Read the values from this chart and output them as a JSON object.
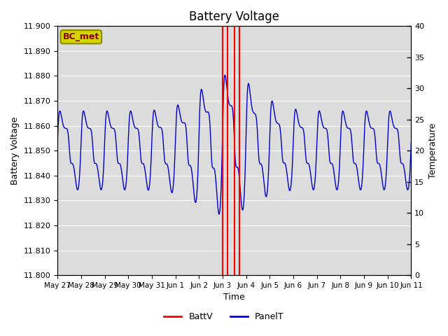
{
  "title": "Battery Voltage",
  "xlabel": "Time",
  "ylabel_left": "Battery Voltage",
  "ylabel_right": "Temperature",
  "ylim_left": [
    11.8,
    11.9
  ],
  "ylim_right": [
    0,
    40
  ],
  "yticks_left": [
    11.8,
    11.81,
    11.82,
    11.83,
    11.84,
    11.85,
    11.86,
    11.87,
    11.88,
    11.89,
    11.9
  ],
  "yticks_right": [
    0,
    5,
    10,
    15,
    20,
    25,
    30,
    35,
    40
  ],
  "x_tick_labels": [
    "May 27",
    "May 28",
    "May 29",
    "May 30",
    "May 31",
    "Jun 1",
    "Jun 2",
    "Jun 3",
    "Jun 4",
    "Jun 5",
    "Jun 6",
    "Jun 7",
    "Jun 8",
    "Jun 9",
    "Jun 10",
    "Jun 11"
  ],
  "legend_battv_color": "#FF0000",
  "legend_panelt_color": "#0000FF",
  "line_color": "#0000CC",
  "bg_color": "#DCDCDC",
  "grid_color": "#FFFFFF",
  "annotation_text": "BC_met",
  "annotation_bg_color": "#D4D400",
  "annotation_text_color": "#8B0000",
  "annotation_border_color": "#8B8B00",
  "vlines": [
    7.0,
    7.2,
    7.5,
    7.7
  ],
  "vline_color": "#FF0000"
}
